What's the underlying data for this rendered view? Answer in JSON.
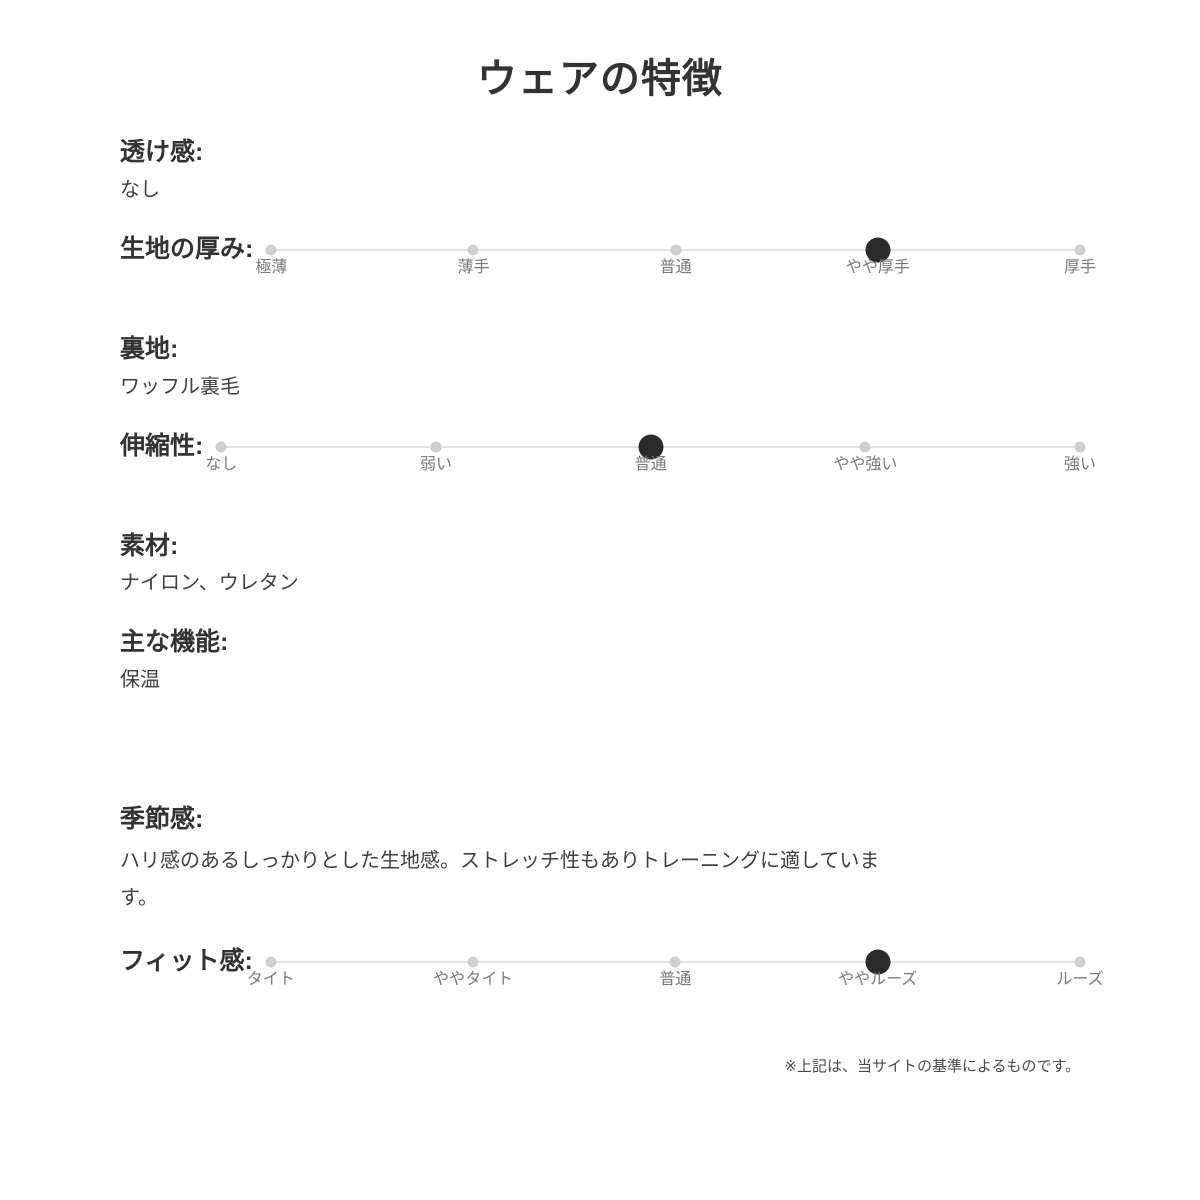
{
  "page": {
    "title": "ウェアの特徴",
    "footer_note": "※上記は、当サイトの基準によるものです。"
  },
  "colors": {
    "heading": "#333333",
    "text": "#404040",
    "slider_track": "#e2e2e2",
    "slider_dot": "#cfcfcf",
    "slider_dot_selected": "#2b2b2b",
    "tick_label": "#7a7a7a",
    "footer": "#4a4a4a"
  },
  "sections": [
    {
      "type": "text",
      "label": "透け感:",
      "value": "なし"
    },
    {
      "type": "slider",
      "label": "生地の厚み:",
      "options": [
        "極薄",
        "薄手",
        "普通",
        "やや厚手",
        "厚手"
      ],
      "selected_index": 3,
      "selected_value": "やや厚手"
    },
    {
      "type": "text",
      "label": "裏地:",
      "value": "ワッフル裏毛"
    },
    {
      "type": "slider",
      "label": "伸縮性:",
      "options": [
        "なし",
        "弱い",
        "普通",
        "やや強い",
        "強い"
      ],
      "selected_index": 2,
      "selected_value": "普通"
    },
    {
      "type": "text",
      "label": "素材:",
      "value": "ナイロン、ウレタン"
    },
    {
      "type": "text",
      "label": "主な機能:",
      "value": "保温"
    },
    {
      "type": "text",
      "label": "季節感:",
      "value": "ハリ感のあるしっかりとした生地感。ストレッチ性もありトレーニングに適しています。",
      "paragraph": true,
      "extra_space_before": true
    },
    {
      "type": "slider",
      "label": "フィット感:",
      "options": [
        "タイト",
        "ややタイト",
        "普通",
        "ややルーズ",
        "ルーズ"
      ],
      "selected_index": 3,
      "selected_value": "ややルーズ"
    }
  ]
}
